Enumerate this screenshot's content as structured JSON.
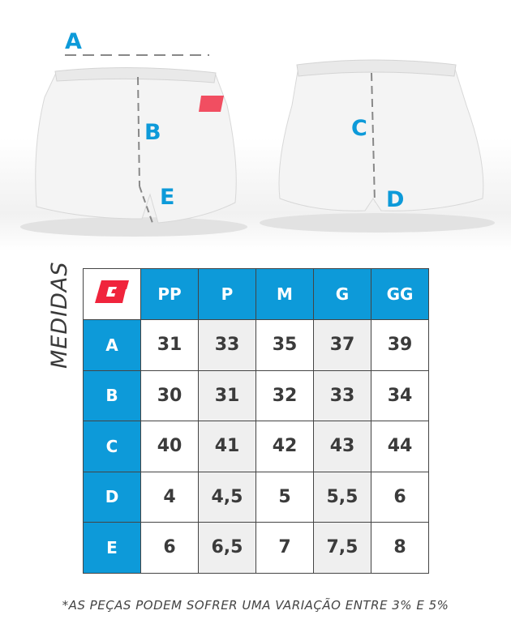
{
  "labels": {
    "a": "A",
    "b": "B",
    "c": "C",
    "d": "D",
    "e": "E"
  },
  "brand_logo": "G",
  "brand_color": "#f0243c",
  "accent_color": "#0d9ad9",
  "side_title": "MEDIDAS",
  "table": {
    "columns": [
      "PP",
      "P",
      "M",
      "G",
      "GG"
    ],
    "rows": [
      {
        "label": "A",
        "values": [
          "31",
          "33",
          "35",
          "37",
          "39"
        ]
      },
      {
        "label": "B",
        "values": [
          "30",
          "31",
          "32",
          "33",
          "34"
        ]
      },
      {
        "label": "C",
        "values": [
          "40",
          "41",
          "42",
          "43",
          "44"
        ]
      },
      {
        "label": "D",
        "values": [
          "4",
          "4,5",
          "5",
          "5,5",
          "6"
        ]
      },
      {
        "label": "E",
        "values": [
          "6",
          "6,5",
          "7",
          "7,5",
          "8"
        ]
      }
    ]
  },
  "footnote": "*AS PEÇAS PODEM SOFRER UMA VARIAÇÃO ENTRE 3% E 5%"
}
